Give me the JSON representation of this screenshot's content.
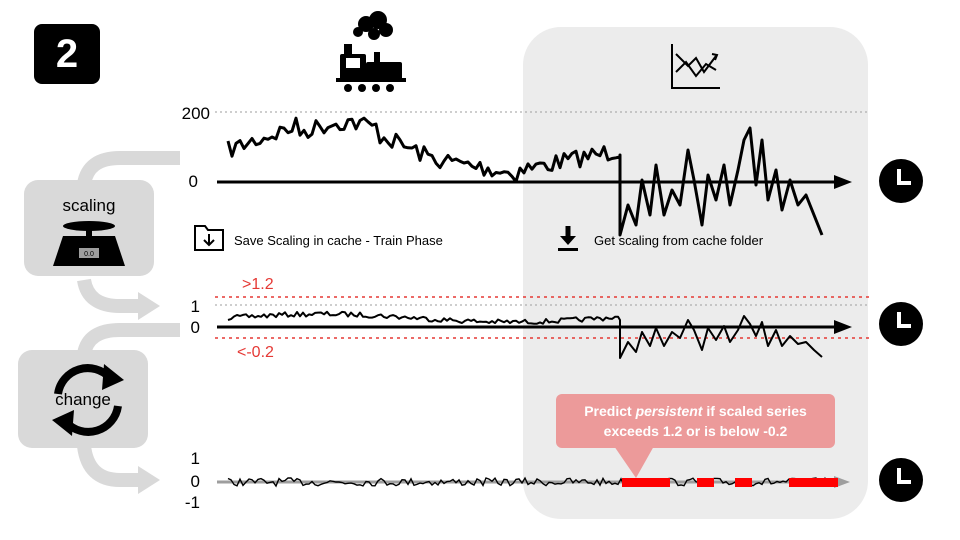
{
  "step_number": "2",
  "icons": {
    "train": "train-icon",
    "test": "chart-icon",
    "scale": "scale-icon",
    "cycle": "cycle-icon",
    "clock": "clock-icon",
    "save": "folder-save-icon",
    "download": "download-icon"
  },
  "colors": {
    "threshold": "#e53935",
    "persistent": "#ff0000",
    "panel": "#ececec",
    "callout": "#ec9a9a"
  },
  "top_chart": {
    "y_max_label": "200",
    "y_zero_label": "0"
  },
  "mid_chart": {
    "y_one_label": "1",
    "y_zero_label": "0",
    "upper_threshold_label": ">1.2",
    "lower_threshold_label": "<-0.2"
  },
  "bottom_chart": {
    "y_one_label": "1",
    "y_zero_label": "0",
    "y_neg_label": "-1"
  },
  "scaling_box": {
    "label": "scaling",
    "scale_readout": "0.0"
  },
  "change_box": {
    "label": "change"
  },
  "cache": {
    "save_label": "Save Scaling in cache - Train Phase",
    "get_label": "Get scaling from cache folder"
  },
  "callout": {
    "text_before": "Predict ",
    "text_emphasis": "persistent",
    "text_after": " if scaled series",
    "line2": "exceeds 1.2 or is below -0.2"
  }
}
